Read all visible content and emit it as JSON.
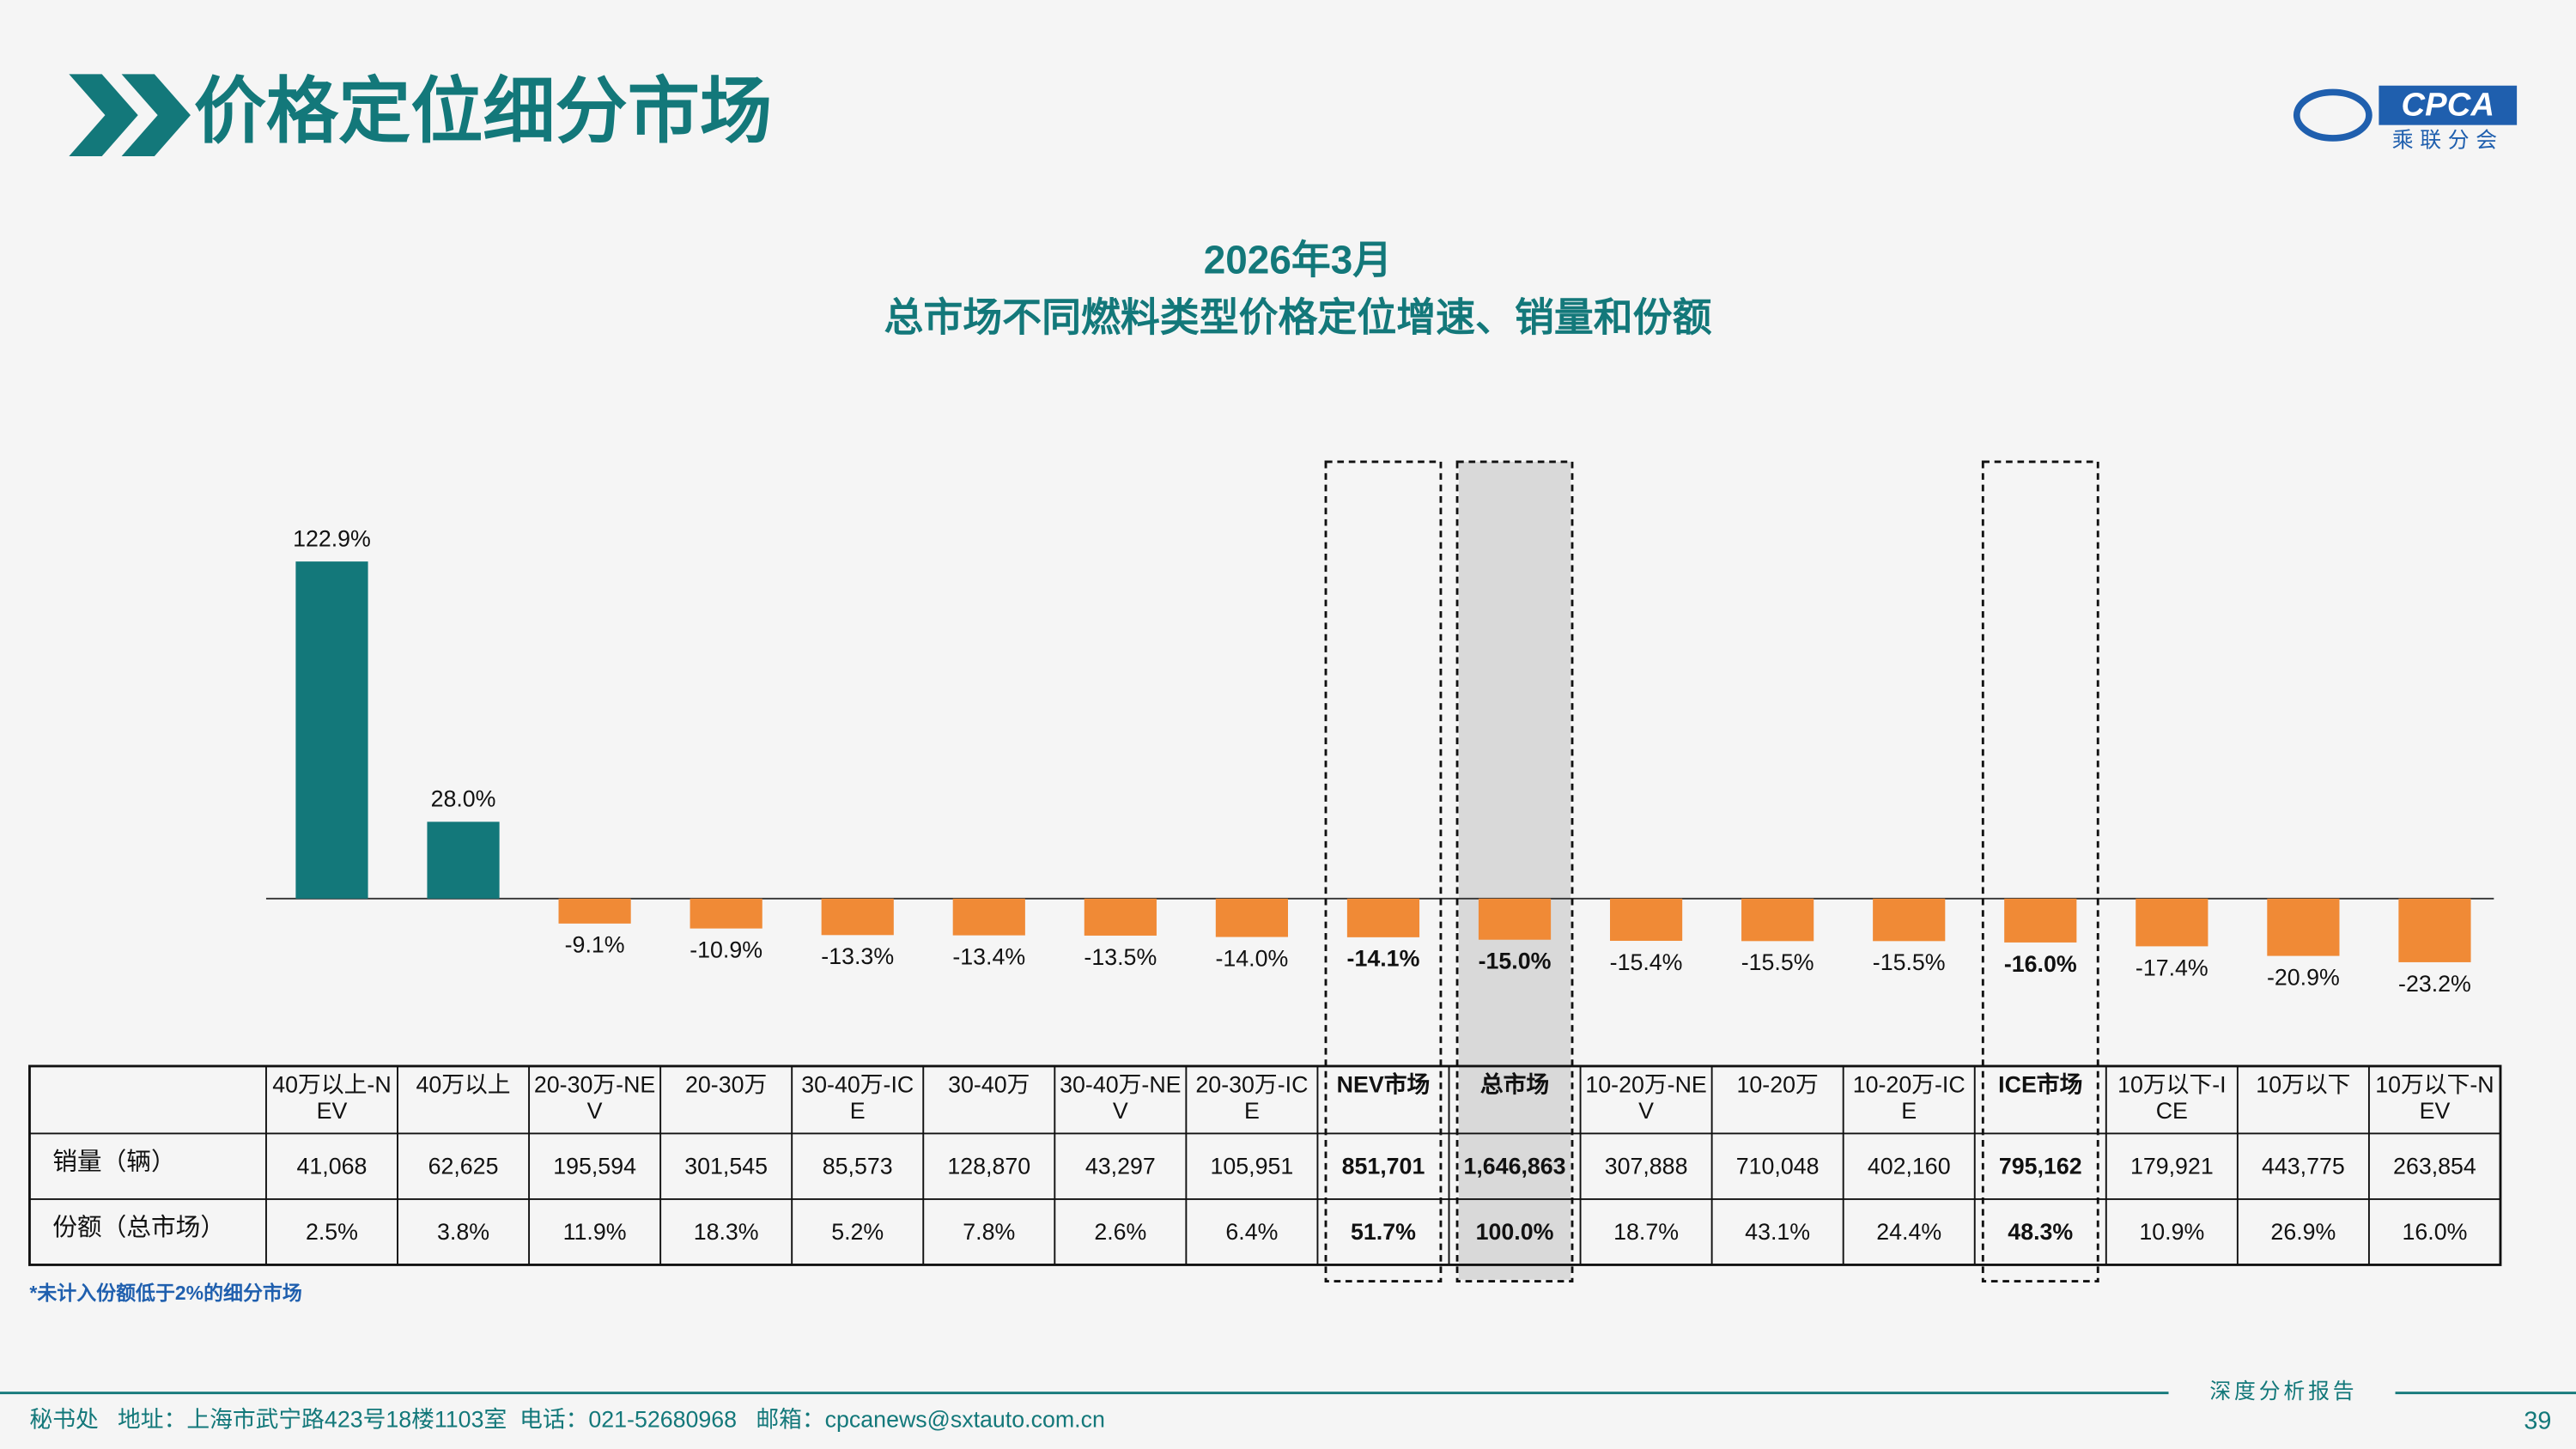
{
  "header": {
    "title": "价格定位细分市场",
    "logo_text": "CPCA",
    "logo_sub": "乘联分会"
  },
  "chart_data": {
    "type": "bar",
    "title": "2026年3月",
    "subtitle": "总市场不同燃料类型价格定位增速、销量和份额",
    "categories": [
      "40万以上-NEV",
      "40万以上",
      "20-30万-NEV",
      "20-30万",
      "30-40万-ICE",
      "30-40万",
      "30-40万-NEV",
      "20-30万-ICE",
      "NEV市场",
      "总市场",
      "10-20万-NEV",
      "10-20万",
      "10-20万-ICE",
      "ICE市场",
      "10万以下-ICE",
      "10万以下",
      "10万以下-NEV"
    ],
    "values": [
      122.9,
      28.0,
      -9.1,
      -10.9,
      -13.3,
      -13.4,
      -13.5,
      -14.0,
      -14.1,
      -15.0,
      -15.4,
      -15.5,
      -15.5,
      -16.0,
      -17.4,
      -20.9,
      -23.2
    ],
    "value_labels": [
      "122.9%",
      "28.0%",
      "-9.1%",
      "-10.9%",
      "-13.3%",
      "-13.4%",
      "-13.5%",
      "-14.0%",
      "-14.1%",
      "-15.0%",
      "-15.4%",
      "-15.5%",
      "-15.5%",
      "-16.0%",
      "-17.4%",
      "-20.9%",
      "-23.2%"
    ],
    "colors": {
      "positive": "#13787a",
      "negative": "#f08a36"
    },
    "highlighted": [
      "NEV市场",
      "总市场",
      "ICE市场"
    ],
    "shaded": [
      "总市场"
    ]
  },
  "table": {
    "rows": [
      {
        "label": "销量（辆）",
        "cells": [
          "41,068",
          "62,625",
          "195,594",
          "301,545",
          "85,573",
          "128,870",
          "43,297",
          "105,951",
          "851,701",
          "1,646,863",
          "307,888",
          "710,048",
          "402,160",
          "795,162",
          "179,921",
          "443,775",
          "263,854"
        ]
      },
      {
        "label": "份额（总市场）",
        "cells": [
          "2.5%",
          "3.8%",
          "11.9%",
          "18.3%",
          "5.2%",
          "7.8%",
          "2.6%",
          "6.4%",
          "51.7%",
          "100.0%",
          "18.7%",
          "43.1%",
          "24.4%",
          "48.3%",
          "10.9%",
          "26.9%",
          "16.0%"
        ]
      }
    ]
  },
  "footnote": "*未计入份额低于2%的细分市场",
  "footer": {
    "address": "秘书处   地址：上海市武宁路423号18楼1103室  电话：021-52680968   邮箱：cpcanews@sxtauto.com.cn",
    "report": "深度分析报告",
    "page": "39"
  }
}
